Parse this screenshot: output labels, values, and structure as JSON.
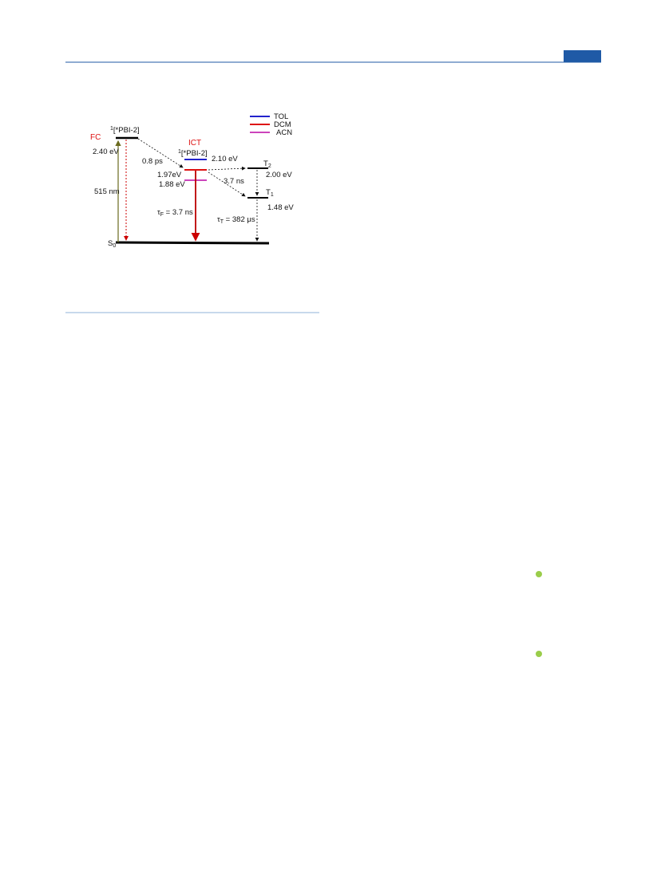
{
  "figure": {
    "legend": [
      "TOL",
      "DCM",
      "ACN"
    ],
    "fc": {
      "label": "FC",
      "state_sup": "1",
      "state": "[*PBI-2]",
      "energy": "2.40 eV",
      "wavelength": "515 nm"
    },
    "ict": {
      "label": "ICT",
      "state_sup": "1",
      "state": "[*PBI-2]",
      "energy_tol": "2.10 eV",
      "energy_dcm": "1.97eV",
      "energy_acn": "1.88 eV",
      "lifetime": {
        "symbol": "τ",
        "sub": "F",
        "text": " = 3.7 ns"
      }
    },
    "transfer_time": "0.8 ps",
    "isc_time": "3.7 ns",
    "t2": {
      "symbol": "T",
      "sub": "2",
      "energy": "2.00 eV"
    },
    "t1": {
      "symbol": "T",
      "sub": "1",
      "energy": "1.48 eV",
      "lifetime": {
        "symbol": "τ",
        "sub": "T",
        "text": " = 382 μs"
      }
    },
    "s0": {
      "symbol": "S",
      "sub": "0"
    }
  }
}
